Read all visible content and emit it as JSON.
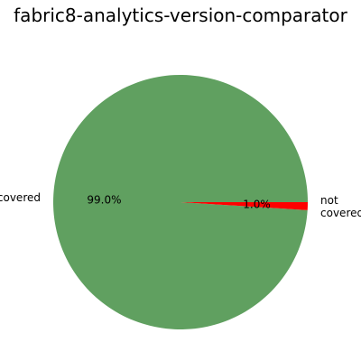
{
  "chart_data": {
    "type": "pie",
    "title": "fabric8-analytics-version-comparator",
    "slices": [
      {
        "label": "covered",
        "label_lines": [
          "covered"
        ],
        "value": 99.0,
        "pct_label": "99.0%",
        "color": "#60a060"
      },
      {
        "label": "not covered",
        "label_lines": [
          "not",
          "covered"
        ],
        "value": 1.0,
        "pct_label": "1.0%",
        "color": "#ff0000"
      }
    ],
    "start_angle_deg": 0,
    "direction": "counterclockwise",
    "legend": "none"
  }
}
